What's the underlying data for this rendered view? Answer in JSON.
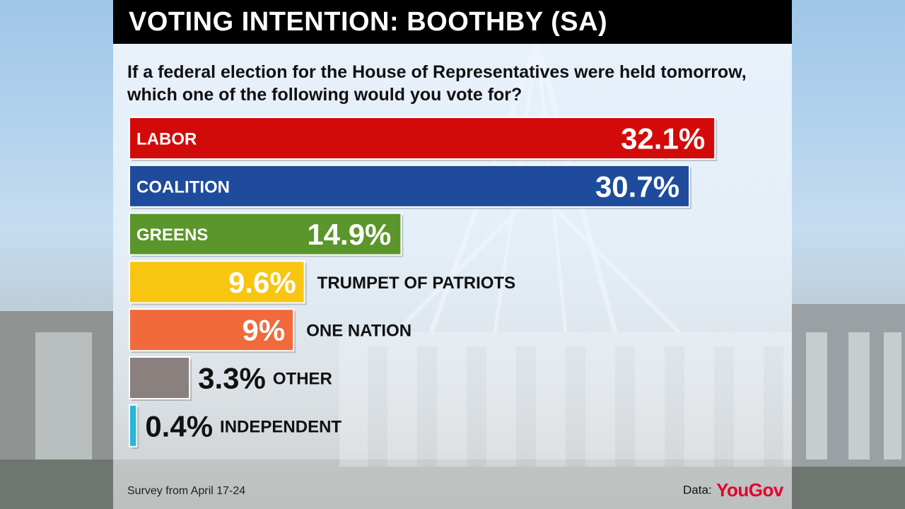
{
  "header": {
    "title": "VOTING INTENTION: BOOTHBY (SA)"
  },
  "question": "If a federal election for the House of Representatives were held tomorrow, which one of the following would you vote for?",
  "chart_data": {
    "type": "bar",
    "orientation": "horizontal",
    "categories": [
      "LABOR",
      "COALITION",
      "GREENS",
      "TRUMPET OF PATRIOTS",
      "ONE NATION",
      "OTHER",
      "INDEPENDENT"
    ],
    "values": [
      32.1,
      30.7,
      14.9,
      9.6,
      9,
      3.3,
      0.4
    ],
    "value_labels": [
      "32.1%",
      "30.7%",
      "14.9%",
      "9.6%",
      "9%",
      "3.3%",
      "0.4%"
    ],
    "colors": [
      "#d30a0a",
      "#1e4b9b",
      "#5a9629",
      "#f8c511",
      "#f06a3c",
      "#8a807e",
      "#29b6d8"
    ],
    "title": "",
    "xlabel": "",
    "ylabel": "",
    "grid": false,
    "legend": "none"
  },
  "footer": {
    "survey": "Survey from April 17-24",
    "data_label": "Data:",
    "brand": "YouGov"
  },
  "colors": {
    "title_bar": "#000000",
    "title_text": "#ffffff",
    "brand": "#e5002d"
  }
}
